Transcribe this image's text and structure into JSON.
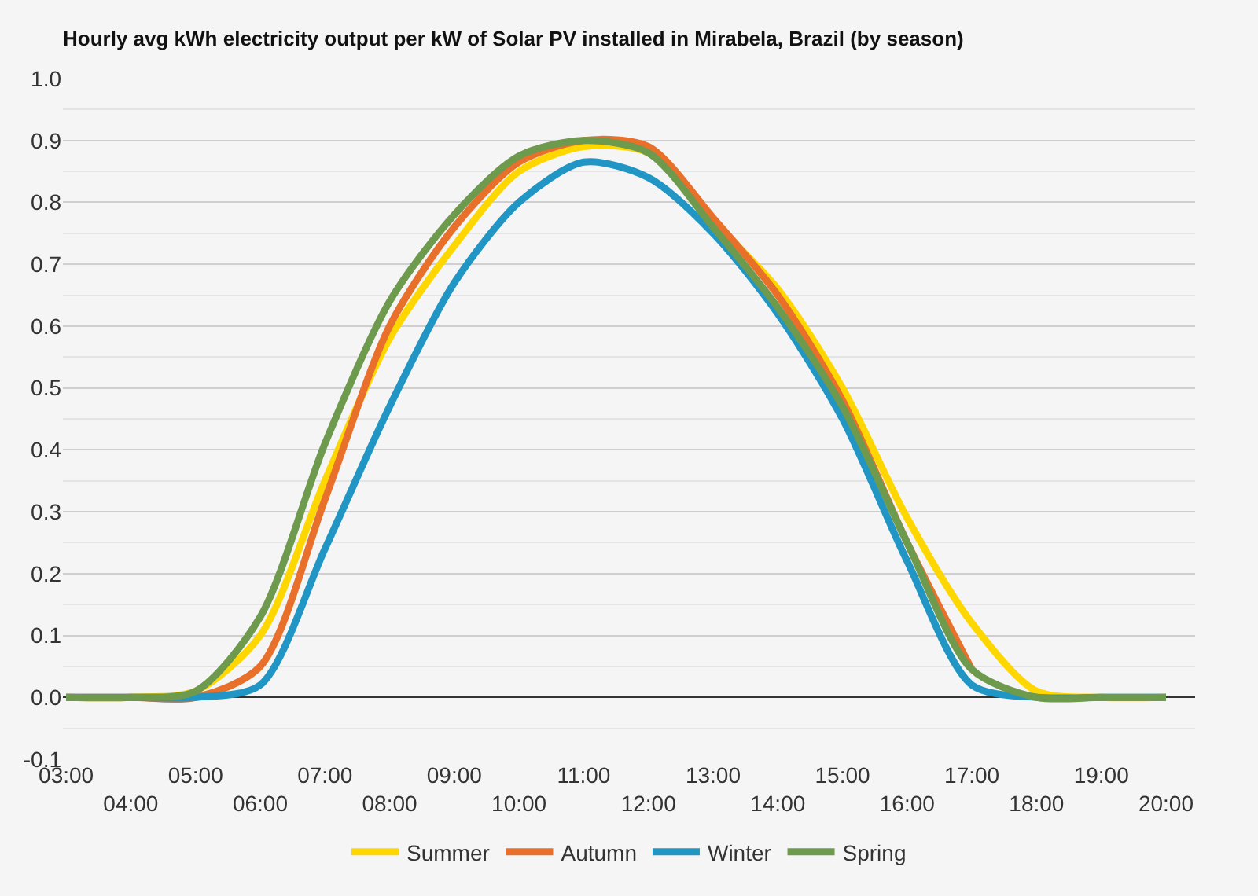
{
  "chart_data": {
    "type": "line",
    "title": "Hourly avg kWh electricity output per kW of Solar PV installed in Mirabela, Brazil (by season)",
    "categories": [
      "03:00",
      "04:00",
      "05:00",
      "06:00",
      "07:00",
      "08:00",
      "09:00",
      "10:00",
      "11:00",
      "12:00",
      "13:00",
      "14:00",
      "15:00",
      "16:00",
      "17:00",
      "18:00",
      "19:00",
      "20:00"
    ],
    "series": [
      {
        "name": "Summer",
        "color": "#ffd700",
        "values": [
          0,
          0,
          0.01,
          0.1,
          0.35,
          0.58,
          0.73,
          0.85,
          0.89,
          0.88,
          0.77,
          0.66,
          0.5,
          0.29,
          0.12,
          0.01,
          0,
          0
        ]
      },
      {
        "name": "Autumn",
        "color": "#e8702a",
        "values": [
          0,
          0,
          0,
          0.05,
          0.32,
          0.6,
          0.76,
          0.865,
          0.9,
          0.89,
          0.775,
          0.65,
          0.48,
          0.25,
          0.045,
          null,
          null,
          null
        ]
      },
      {
        "name": "Winter",
        "color": "#2196c4",
        "values": [
          0,
          0,
          0,
          0.02,
          0.24,
          0.47,
          0.67,
          0.8,
          0.865,
          0.84,
          0.75,
          0.62,
          0.45,
          0.22,
          0.02,
          0,
          0,
          0
        ]
      },
      {
        "name": "Spring",
        "color": "#6e9a4e",
        "values": [
          0,
          0,
          0.01,
          0.13,
          0.41,
          0.64,
          0.78,
          0.875,
          0.9,
          0.88,
          0.76,
          0.63,
          0.47,
          0.25,
          0.045,
          0,
          0,
          0
        ]
      }
    ],
    "ylim": [
      -0.1,
      1.0
    ],
    "yticks": [
      -0.1,
      {
        "value": 0,
        "label": "0.0"
      },
      0.1,
      0.2,
      0.3,
      0.4,
      0.5,
      0.6,
      0.7,
      0.8,
      0.9,
      {
        "value": 1,
        "label": "1.0"
      }
    ],
    "grid": "y",
    "legend": "bottom",
    "marker": "none",
    "line_style": "solid"
  }
}
